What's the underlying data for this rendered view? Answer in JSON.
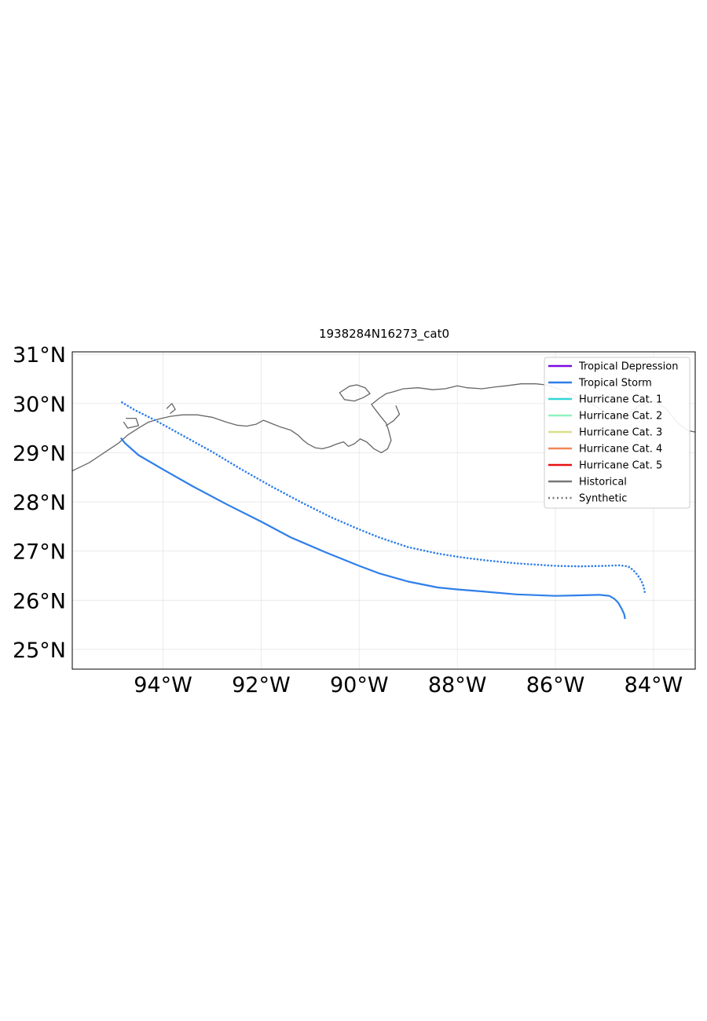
{
  "title": "1938284N16273_cat0",
  "map": {
    "projection": "PlateCarree",
    "lon_range": [
      -95.85,
      -83.15
    ],
    "lat_range": [
      24.6,
      31.05
    ],
    "lon_ticks": [
      -94,
      -92,
      -90,
      -88,
      -86,
      -84
    ],
    "lon_tick_labels": [
      "94°W",
      "92°W",
      "90°W",
      "88°W",
      "86°W",
      "84°W"
    ],
    "lat_ticks": [
      25,
      26,
      27,
      28,
      29,
      30,
      31
    ],
    "lat_tick_labels": [
      "25°N",
      "26°N",
      "27°N",
      "28°N",
      "29°N",
      "30°N",
      "31°N"
    ],
    "gridlines": true,
    "coastline_color": "#666666"
  },
  "legend": {
    "placement": "upper-right",
    "entries": [
      {
        "label": "Tropical Depression",
        "color": "#7b0be0",
        "style": "solid"
      },
      {
        "label": "Tropical Storm",
        "color": "#2f7fea",
        "style": "solid"
      },
      {
        "label": "Hurricane Cat. 1",
        "color": "#33d6d6",
        "style": "solid"
      },
      {
        "label": "Hurricane Cat. 2",
        "color": "#8ff2c0",
        "style": "solid"
      },
      {
        "label": "Hurricane Cat. 3",
        "color": "#d8de8c",
        "style": "solid"
      },
      {
        "label": "Hurricane Cat. 4",
        "color": "#f2875a",
        "style": "solid"
      },
      {
        "label": "Hurricane Cat. 5",
        "color": "#e61010",
        "style": "solid"
      },
      {
        "label": "Historical",
        "color": "#777777",
        "style": "solid"
      },
      {
        "label": "Synthetic",
        "color": "#777777",
        "style": "dotted"
      }
    ]
  },
  "chart_data": {
    "type": "line",
    "title": "1938284N16273_cat0",
    "xlim": [
      -95.85,
      -83.15
    ],
    "ylim": [
      24.6,
      31.05
    ],
    "series": [
      {
        "name": "Historical",
        "category": "Tropical Storm",
        "color": "#2f7fea",
        "style": "solid",
        "lon": [
          -84.58,
          -84.6,
          -84.65,
          -84.72,
          -84.8,
          -84.9,
          -85.1,
          -85.5,
          -86.0,
          -86.8,
          -87.5,
          -88.0,
          -88.4,
          -89.0,
          -89.6,
          -90.0,
          -90.7,
          -91.4,
          -92.0,
          -92.7,
          -93.4,
          -94.0,
          -94.5,
          -94.78,
          -94.86
        ],
        "lat": [
          25.62,
          25.72,
          25.83,
          25.95,
          26.03,
          26.09,
          26.11,
          26.1,
          26.09,
          26.12,
          26.18,
          26.22,
          26.26,
          26.38,
          26.55,
          26.7,
          26.98,
          27.28,
          27.6,
          27.95,
          28.32,
          28.66,
          28.95,
          29.2,
          29.3
        ]
      },
      {
        "name": "Synthetic",
        "category": "Tropical Storm",
        "color": "#2f7fea",
        "style": "dotted",
        "lon": [
          -84.18,
          -84.2,
          -84.25,
          -84.33,
          -84.42,
          -84.52,
          -84.7,
          -85.0,
          -85.5,
          -86.0,
          -86.8,
          -87.4,
          -87.9,
          -88.4,
          -89.0,
          -89.6,
          -90.0,
          -90.6,
          -91.2,
          -91.8,
          -92.4,
          -93.0,
          -93.6,
          -94.2,
          -94.6,
          -94.88
        ],
        "lat": [
          26.17,
          26.28,
          26.4,
          26.52,
          26.62,
          26.69,
          26.71,
          26.7,
          26.69,
          26.7,
          26.75,
          26.81,
          26.87,
          26.95,
          27.08,
          27.28,
          27.44,
          27.7,
          28.0,
          28.32,
          28.66,
          29.02,
          29.35,
          29.68,
          29.88,
          30.05
        ]
      }
    ]
  },
  "coastline": [
    [
      [
        -95.85,
        28.63
      ],
      [
        -95.5,
        28.8
      ],
      [
        -95.2,
        29.0
      ],
      [
        -94.9,
        29.2
      ],
      [
        -94.72,
        29.36
      ],
      [
        -94.5,
        29.5
      ],
      [
        -94.3,
        29.62
      ],
      [
        -94.1,
        29.68
      ],
      [
        -93.85,
        29.74
      ],
      [
        -93.6,
        29.77
      ],
      [
        -93.3,
        29.77
      ],
      [
        -93.0,
        29.72
      ],
      [
        -92.7,
        29.62
      ],
      [
        -92.5,
        29.56
      ],
      [
        -92.3,
        29.54
      ],
      [
        -92.1,
        29.58
      ],
      [
        -91.95,
        29.66
      ],
      [
        -91.85,
        29.62
      ],
      [
        -91.75,
        29.58
      ],
      [
        -91.6,
        29.52
      ],
      [
        -91.4,
        29.46
      ],
      [
        -91.25,
        29.36
      ],
      [
        -91.15,
        29.26
      ],
      [
        -91.05,
        29.18
      ],
      [
        -90.9,
        29.1
      ],
      [
        -90.75,
        29.08
      ],
      [
        -90.6,
        29.12
      ],
      [
        -90.45,
        29.18
      ],
      [
        -90.32,
        29.22
      ],
      [
        -90.22,
        29.13
      ],
      [
        -90.1,
        29.18
      ],
      [
        -89.98,
        29.28
      ],
      [
        -89.85,
        29.22
      ],
      [
        -89.7,
        29.08
      ],
      [
        -89.55,
        29.0
      ],
      [
        -89.42,
        29.08
      ],
      [
        -89.35,
        29.25
      ],
      [
        -89.4,
        29.45
      ],
      [
        -89.45,
        29.6
      ],
      [
        -89.55,
        29.72
      ],
      [
        -89.65,
        29.85
      ],
      [
        -89.75,
        29.98
      ],
      [
        -89.6,
        30.1
      ],
      [
        -89.45,
        30.2
      ],
      [
        -89.3,
        30.24
      ],
      [
        -89.1,
        30.3
      ],
      [
        -88.8,
        30.32
      ],
      [
        -88.5,
        30.28
      ],
      [
        -88.25,
        30.3
      ],
      [
        -88.0,
        30.36
      ],
      [
        -87.8,
        30.32
      ],
      [
        -87.5,
        30.3
      ],
      [
        -87.2,
        30.34
      ],
      [
        -87.0,
        30.36
      ],
      [
        -86.7,
        30.4
      ],
      [
        -86.4,
        30.4
      ],
      [
        -86.2,
        30.38
      ],
      [
        -86.0,
        30.32
      ],
      [
        -85.7,
        30.2
      ],
      [
        -85.4,
        30.06
      ],
      [
        -85.1,
        29.9
      ],
      [
        -84.85,
        29.74
      ],
      [
        -84.6,
        29.75
      ],
      [
        -84.3,
        29.95
      ],
      [
        -84.0,
        30.05
      ],
      [
        -83.75,
        29.9
      ],
      [
        -83.5,
        29.6
      ],
      [
        -83.3,
        29.45
      ],
      [
        -83.15,
        29.42
      ]
    ],
    [
      [
        -90.4,
        30.22
      ],
      [
        -90.2,
        30.35
      ],
      [
        -90.05,
        30.38
      ],
      [
        -89.88,
        30.32
      ],
      [
        -89.78,
        30.2
      ],
      [
        -89.92,
        30.12
      ],
      [
        -90.1,
        30.05
      ],
      [
        -90.3,
        30.08
      ],
      [
        -90.4,
        30.22
      ]
    ],
    [
      [
        -89.25,
        29.95
      ],
      [
        -89.18,
        29.78
      ],
      [
        -89.3,
        29.65
      ],
      [
        -89.45,
        29.55
      ]
    ],
    [
      [
        -94.75,
        29.7
      ],
      [
        -94.55,
        29.7
      ],
      [
        -94.5,
        29.55
      ],
      [
        -94.72,
        29.5
      ],
      [
        -94.8,
        29.62
      ]
    ],
    [
      [
        -93.92,
        29.9
      ],
      [
        -93.82,
        30.0
      ],
      [
        -93.75,
        29.88
      ],
      [
        -93.85,
        29.8
      ]
    ]
  ]
}
